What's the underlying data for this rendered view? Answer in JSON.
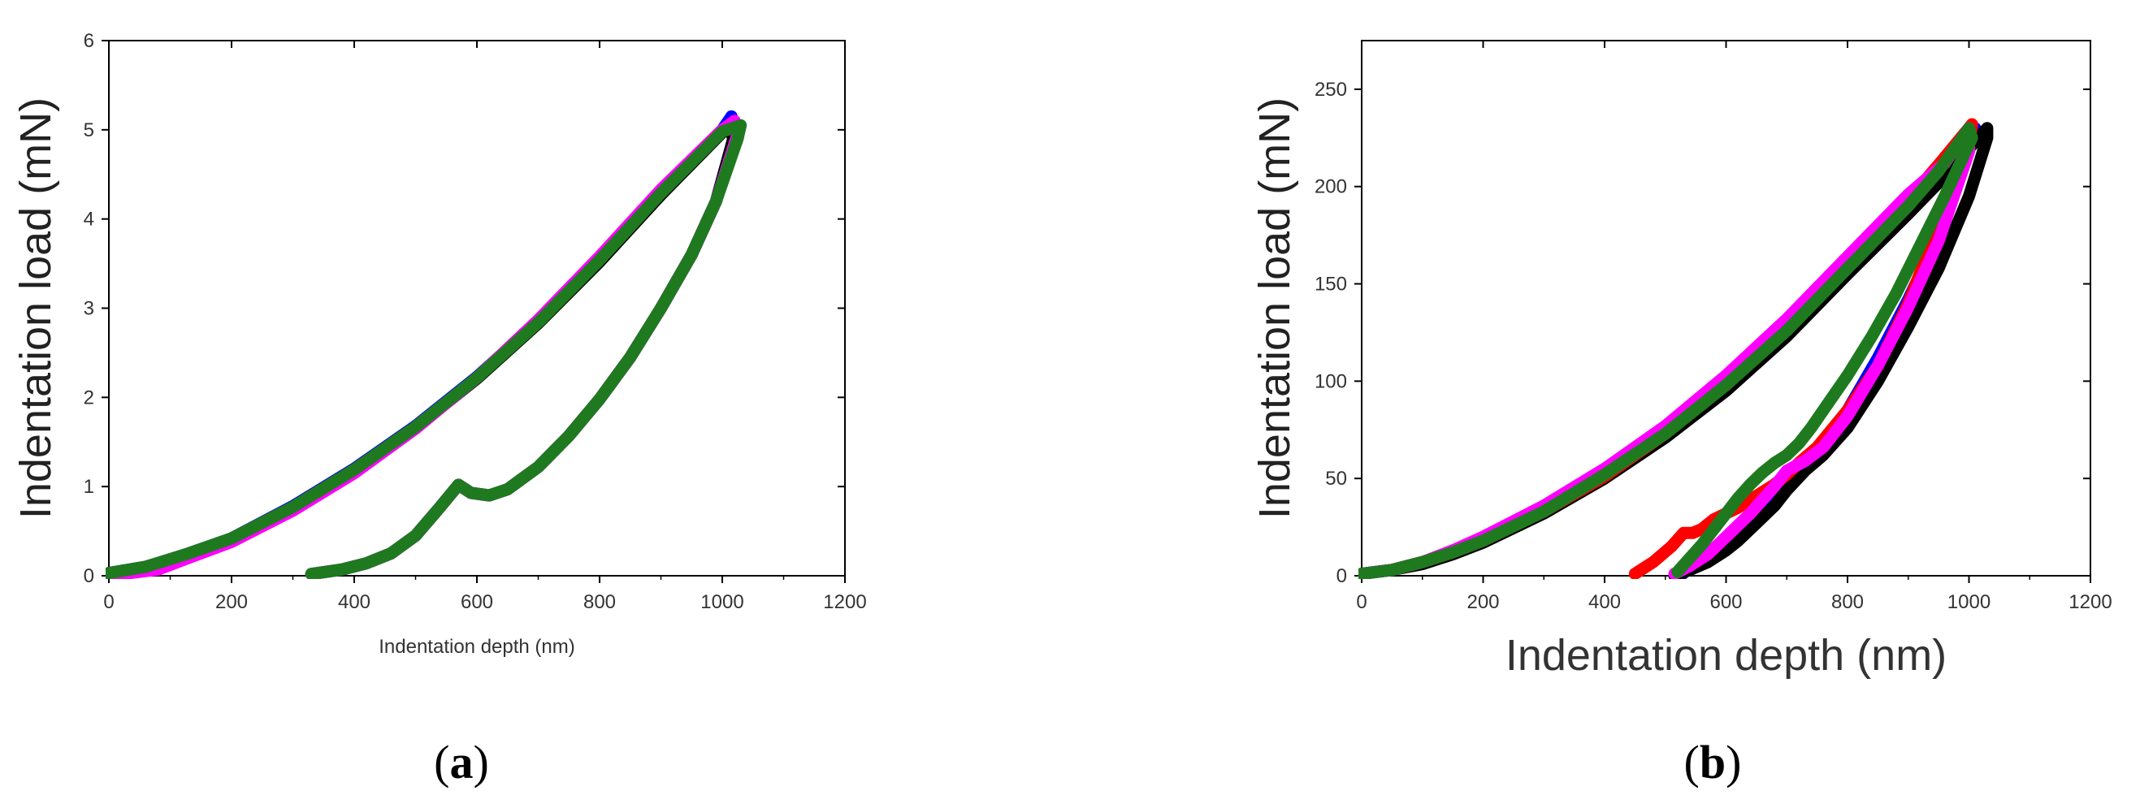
{
  "chart_data": [
    {
      "type": "line",
      "panel_label": "a",
      "xlabel": "Indentation depth (nm)",
      "ylabel": "Indentation load (mN)",
      "xlim": [
        0,
        1200
      ],
      "ylim": [
        0,
        6
      ],
      "xticks": [
        0,
        200,
        400,
        600,
        800,
        1000,
        1200
      ],
      "yticks": [
        0,
        1,
        2,
        3,
        4,
        5,
        6
      ],
      "grid": false,
      "series": [
        {
          "color": "#0000ff",
          "loading": {
            "x": [
              0,
              60,
              130,
              200,
              300,
              400,
              500,
              600,
              700,
              800,
              900,
              1000,
              1015
            ],
            "y": [
              0.03,
              0.1,
              0.25,
              0.42,
              0.78,
              1.2,
              1.68,
              2.23,
              2.85,
              3.55,
              4.3,
              5.0,
              5.15
            ]
          },
          "unloading": {
            "x": [
              1015,
              1020,
              990,
              950,
              900,
              850,
              800,
              750,
              700,
              650,
              620,
              590,
              570,
              540,
              500,
              460,
              420,
              380,
              330
            ],
            "y": [
              5.15,
              4.95,
              4.2,
              3.6,
              3.0,
              2.45,
              1.98,
              1.57,
              1.22,
              0.97,
              0.9,
              0.93,
              1.02,
              0.77,
              0.45,
              0.25,
              0.14,
              0.07,
              0.02
            ]
          }
        },
        {
          "color": "#000000",
          "loading": {
            "x": [
              0,
              60,
              130,
              200,
              300,
              400,
              500,
              600,
              700,
              800,
              900,
              1000,
              1010
            ],
            "y": [
              0.03,
              0.1,
              0.24,
              0.41,
              0.76,
              1.18,
              1.66,
              2.21,
              2.83,
              3.52,
              4.27,
              4.97,
              5.05
            ]
          },
          "unloading": {
            "x": [
              1010,
              1018,
              990,
              950,
              900,
              850,
              800,
              750,
              700,
              650,
              620,
              590,
              570,
              540,
              500,
              460,
              420,
              380,
              330
            ],
            "y": [
              5.05,
              4.9,
              4.2,
              3.6,
              3.0,
              2.45,
              1.98,
              1.57,
              1.22,
              0.97,
              0.9,
              0.93,
              1.02,
              0.77,
              0.45,
              0.25,
              0.14,
              0.07,
              0.02
            ]
          }
        },
        {
          "color": "#ff00ff",
          "loading": {
            "x": [
              0,
              80,
              130,
              200,
              300,
              400,
              500,
              600,
              700,
              800,
              900,
              1000,
              1020
            ],
            "y": [
              0.0,
              0.07,
              0.2,
              0.38,
              0.73,
              1.15,
              1.65,
              2.22,
              2.87,
              3.58,
              4.33,
              5.0,
              5.1
            ]
          },
          "unloading": {
            "x": [
              1020,
              1025,
              990,
              950,
              900,
              850,
              800,
              750,
              700,
              650,
              620,
              590,
              570,
              540,
              500,
              460,
              420,
              380,
              330
            ],
            "y": [
              5.1,
              4.95,
              4.2,
              3.6,
              3.0,
              2.45,
              1.98,
              1.57,
              1.22,
              0.97,
              0.9,
              0.93,
              1.02,
              0.77,
              0.45,
              0.25,
              0.14,
              0.07,
              0.02
            ]
          }
        },
        {
          "color": "#1f7a1f",
          "loading": {
            "x": [
              0,
              60,
              130,
              200,
              300,
              400,
              500,
              600,
              700,
              800,
              900,
              1000,
              1030
            ],
            "y": [
              0.03,
              0.1,
              0.25,
              0.42,
              0.77,
              1.19,
              1.67,
              2.22,
              2.84,
              3.54,
              4.29,
              4.98,
              5.05
            ]
          },
          "unloading": {
            "x": [
              1030,
              1025,
              990,
              950,
              900,
              850,
              800,
              750,
              700,
              650,
              620,
              590,
              570,
              540,
              500,
              460,
              420,
              380,
              330
            ],
            "y": [
              5.05,
              4.9,
              4.2,
              3.6,
              3.0,
              2.45,
              1.98,
              1.57,
              1.22,
              0.97,
              0.9,
              0.93,
              1.02,
              0.77,
              0.45,
              0.25,
              0.14,
              0.07,
              0.02
            ]
          }
        }
      ]
    },
    {
      "type": "line",
      "panel_label": "b",
      "xlabel": "Indentation depth (nm)",
      "ylabel": "Indentation load (mN)",
      "xlim": [
        0,
        1200
      ],
      "ylim": [
        0,
        275
      ],
      "xticks": [
        0,
        200,
        400,
        600,
        800,
        1000,
        1200
      ],
      "yticks": [
        0,
        50,
        100,
        150,
        200,
        250
      ],
      "grid": false,
      "series": [
        {
          "color": "#0000ff",
          "loading": {
            "x": [
              0,
              50,
              100,
              150,
              200,
              300,
              400,
              500,
              600,
              700,
              800,
              900,
              950
            ],
            "y": [
              1,
              3,
              7,
              12,
              18,
              33,
              51,
              72,
              97,
              126,
              158,
              190,
              205
            ]
          },
          "unloading": {
            "x": [
              950,
              1010,
              1000,
              950,
              900,
              850,
              800,
              760,
              730,
              700,
              680,
              660,
              640,
              620,
              600,
              570,
              540,
              525
            ],
            "y": [
              205,
              230,
              220,
              175,
              142,
              112,
              85,
              68,
              60,
              52,
              44,
              37,
              31,
              25,
              18,
              10,
              4,
              0
            ]
          }
        },
        {
          "color": "#000000",
          "loading": {
            "x": [
              0,
              50,
              100,
              150,
              200,
              300,
              400,
              500,
              600,
              700,
              800,
              900,
              950
            ],
            "y": [
              1,
              3,
              6,
              11,
              17,
              32,
              50,
              71,
              95,
              123,
              155,
              186,
              202
            ]
          },
          "unloading": {
            "x": [
              950,
              1030,
              1030,
              1000,
              950,
              900,
              850,
              800,
              760,
              730,
              700,
              680,
              650,
              620,
              600,
              570,
              540,
              515
            ],
            "y": [
              202,
              230,
              225,
              195,
              158,
              128,
              100,
              76,
              62,
              54,
              44,
              36,
              27,
              18,
              13,
              7,
              3,
              0
            ]
          }
        },
        {
          "color": "#ff0000",
          "loading": {
            "x": [
              0,
              50,
              100,
              150,
              200,
              300,
              400,
              500,
              600,
              700,
              800,
              900,
              960
            ],
            "y": [
              1,
              3,
              7,
              12,
              18,
              33,
              51,
              73,
              98,
              127,
              160,
              193,
              215
            ]
          },
          "unloading": {
            "x": [
              960,
              1005,
              1000,
              950,
              900,
              850,
              800,
              750,
              720,
              700,
              680,
              650,
              620,
              600,
              580,
              560,
              545,
              530,
              510,
              480,
              450
            ],
            "y": [
              215,
              232,
              222,
              180,
              140,
              108,
              85,
              66,
              58,
              52,
              47,
              41,
              35,
              32,
              29,
              24,
              22,
              22,
              15,
              7,
              1
            ]
          }
        },
        {
          "color": "#ff00ff",
          "loading": {
            "x": [
              0,
              50,
              100,
              150,
              200,
              300,
              400,
              500,
              600,
              700,
              800,
              900,
              960
            ],
            "y": [
              1,
              3,
              7,
              13,
              20,
              36,
              55,
              77,
              103,
              132,
              164,
              196,
              212
            ]
          },
          "unloading": {
            "x": [
              960,
              1000,
              1000,
              950,
              900,
              850,
              800,
              760,
              730,
              700,
              680,
              660,
              640,
              620,
              600,
              570,
              540,
              515
            ],
            "y": [
              212,
              230,
              218,
              172,
              138,
              108,
              82,
              66,
              59,
              54,
              46,
              39,
              32,
              26,
              20,
              11,
              5,
              1
            ]
          }
        },
        {
          "color": "#1f7a1f",
          "loading": {
            "x": [
              0,
              50,
              100,
              150,
              200,
              300,
              400,
              500,
              600,
              700,
              800,
              900,
              950
            ],
            "y": [
              1,
              3,
              7,
              12,
              18,
              33,
              52,
              73,
              98,
              126,
              158,
              190,
              208
            ]
          },
          "unloading": {
            "x": [
              950,
              1000,
              1005,
              960,
              920,
              880,
              840,
              800,
              760,
              740,
              720,
              700,
              680,
              660,
              640,
              620,
              600,
              580,
              560,
              540,
              520
            ],
            "y": [
              208,
              230,
              225,
              195,
              170,
              145,
              123,
              103,
              85,
              76,
              68,
              62,
              58,
              53,
              47,
              40,
              32,
              24,
              16,
              9,
              2
            ]
          }
        }
      ]
    }
  ]
}
